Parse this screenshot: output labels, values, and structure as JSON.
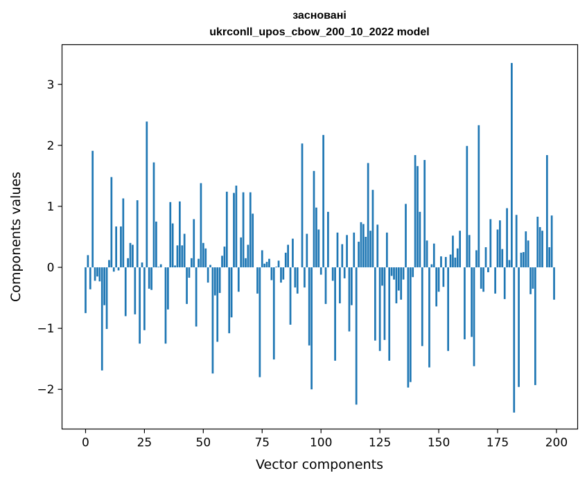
{
  "chart_data": {
    "type": "bar",
    "title_line1": "засновані",
    "title_line2": "ukrconll_upos_cbow_200_10_2022 model",
    "xlabel": "Vector components",
    "ylabel": "Components values",
    "xlim": [
      -10,
      209
    ],
    "ylim": [
      -2.65,
      3.65
    ],
    "xticks": [
      0,
      25,
      50,
      75,
      100,
      125,
      150,
      175,
      200
    ],
    "yticks": [
      -2,
      -1,
      0,
      1,
      2,
      3
    ],
    "xtick_labels": [
      "0",
      "25",
      "50",
      "75",
      "100",
      "125",
      "150",
      "175",
      "200"
    ],
    "ytick_labels": [
      "−2",
      "−1",
      "0",
      "1",
      "2",
      "3"
    ],
    "bar_color": "#1f77b4",
    "grid": false,
    "x": [
      0,
      1,
      2,
      3,
      4,
      5,
      6,
      7,
      8,
      9,
      10,
      11,
      12,
      13,
      14,
      15,
      16,
      17,
      18,
      19,
      20,
      21,
      22,
      23,
      24,
      25,
      26,
      27,
      28,
      29,
      30,
      31,
      32,
      33,
      34,
      35,
      36,
      37,
      38,
      39,
      40,
      41,
      42,
      43,
      44,
      45,
      46,
      47,
      48,
      49,
      50,
      51,
      52,
      53,
      54,
      55,
      56,
      57,
      58,
      59,
      60,
      61,
      62,
      63,
      64,
      65,
      66,
      67,
      68,
      69,
      70,
      71,
      72,
      73,
      74,
      75,
      76,
      77,
      78,
      79,
      80,
      81,
      82,
      83,
      84,
      85,
      86,
      87,
      88,
      89,
      90,
      91,
      92,
      93,
      94,
      95,
      96,
      97,
      98,
      99,
      100,
      101,
      102,
      103,
      104,
      105,
      106,
      107,
      108,
      109,
      110,
      111,
      112,
      113,
      114,
      115,
      116,
      117,
      118,
      119,
      120,
      121,
      122,
      123,
      124,
      125,
      126,
      127,
      128,
      129,
      130,
      131,
      132,
      133,
      134,
      135,
      136,
      137,
      138,
      139,
      140,
      141,
      142,
      143,
      144,
      145,
      146,
      147,
      148,
      149,
      150,
      151,
      152,
      153,
      154,
      155,
      156,
      157,
      158,
      159,
      160,
      161,
      162,
      163,
      164,
      165,
      166,
      167,
      168,
      169,
      170,
      171,
      172,
      173,
      174,
      175,
      176,
      177,
      178,
      179,
      180,
      181,
      182,
      183,
      184,
      185,
      186,
      187,
      188,
      189,
      190,
      191,
      192,
      193,
      194,
      195,
      196,
      197,
      198,
      199
    ],
    "values": [
      -0.75,
      0.2,
      -0.36,
      1.91,
      -0.22,
      -0.15,
      -0.23,
      -1.69,
      -0.62,
      -1.01,
      0.12,
      1.48,
      -0.07,
      0.67,
      -0.05,
      0.67,
      1.13,
      -0.8,
      0.15,
      0.4,
      0.37,
      -0.77,
      1.1,
      -1.25,
      0.08,
      -1.03,
      2.39,
      -0.35,
      -0.37,
      1.72,
      0.75,
      0.01,
      0.05,
      0.0,
      -1.25,
      -0.69,
      1.07,
      0.72,
      0.03,
      0.36,
      1.08,
      0.36,
      0.55,
      -0.6,
      -0.17,
      0.15,
      0.79,
      -0.97,
      0.14,
      1.38,
      0.4,
      0.31,
      -0.25,
      0.04,
      -1.74,
      -0.46,
      -1.22,
      -0.42,
      0.19,
      0.34,
      1.24,
      -1.08,
      -0.82,
      1.22,
      1.34,
      -0.4,
      0.49,
      1.23,
      0.15,
      0.37,
      1.23,
      0.88,
      0.0,
      -0.43,
      -1.8,
      0.28,
      0.06,
      0.09,
      0.14,
      -0.21,
      -1.51,
      0.01,
      0.11,
      -0.25,
      -0.2,
      0.24,
      0.37,
      -0.94,
      0.47,
      -0.33,
      -0.43,
      0.0,
      2.03,
      -0.33,
      0.55,
      -1.28,
      -2.0,
      1.58,
      0.98,
      0.62,
      -0.12,
      2.17,
      -0.6,
      0.91,
      0.0,
      -0.22,
      -1.53,
      0.57,
      -0.59,
      0.38,
      -0.18,
      0.53,
      -1.05,
      -0.62,
      0.57,
      -2.25,
      0.42,
      0.74,
      0.71,
      0.5,
      1.71,
      0.6,
      1.27,
      -1.2,
      0.7,
      -1.37,
      -0.3,
      -1.19,
      0.57,
      -1.53,
      -0.14,
      -0.2,
      -0.59,
      -0.38,
      -0.53,
      -0.2,
      1.04,
      -1.97,
      -1.88,
      -0.16,
      1.84,
      1.66,
      0.91,
      -1.29,
      1.76,
      0.44,
      -1.64,
      0.05,
      0.39,
      -0.64,
      -0.4,
      0.18,
      -0.32,
      0.17,
      -1.37,
      0.21,
      0.52,
      0.16,
      0.31,
      0.6,
      0.0,
      -1.18,
      1.99,
      0.53,
      -1.14,
      -1.62,
      0.28,
      2.33,
      -0.35,
      -0.4,
      0.33,
      -0.08,
      0.79,
      0.0,
      -0.43,
      0.62,
      0.77,
      0.3,
      -0.52,
      0.97,
      0.12,
      3.35,
      -2.38,
      0.86,
      -1.96,
      0.24,
      0.25,
      0.59,
      0.44,
      -0.44,
      -0.35,
      -1.93,
      0.83,
      0.66,
      0.6,
      0.0,
      1.84,
      0.33,
      0.85,
      -0.53
    ]
  }
}
